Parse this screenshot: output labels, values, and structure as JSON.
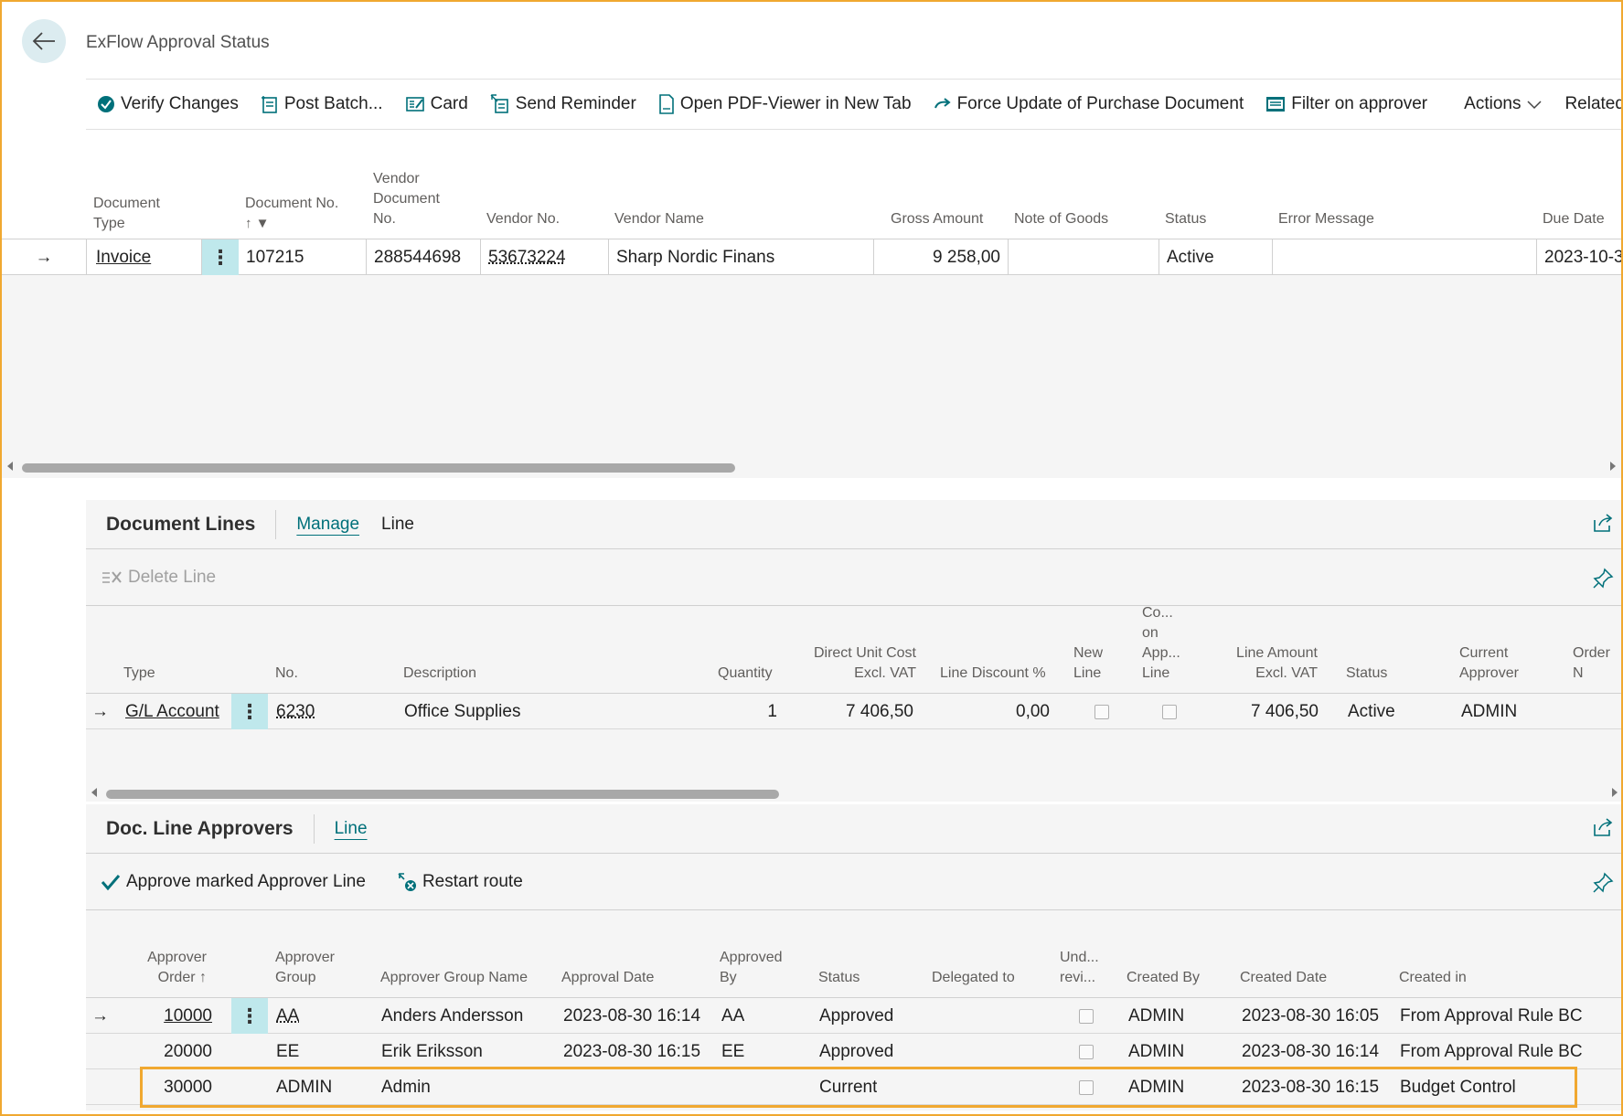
{
  "page": {
    "title": "ExFlow Approval Status"
  },
  "actions": [
    {
      "label": "Verify Changes",
      "icon": "verify-changes-icon"
    },
    {
      "label": "Post Batch...",
      "icon": "post-batch-icon"
    },
    {
      "label": "Card",
      "icon": "card-icon"
    },
    {
      "label": "Send Reminder",
      "icon": "send-reminder-icon"
    },
    {
      "label": "Open PDF-Viewer in New Tab",
      "icon": "pdf-icon"
    },
    {
      "label": "Force Update of Purchase Document",
      "icon": "arrow-right-icon"
    },
    {
      "label": "Filter on approver",
      "icon": "filter-approver-icon"
    },
    {
      "label": "Actions",
      "icon": "chevron-down-icon"
    },
    {
      "label": "Related",
      "icon": ""
    }
  ],
  "main_grid": {
    "columns": {
      "document_type": "Document Type",
      "document_no": "Document No.",
      "vendor_document_no": "Vendor Document No.",
      "vendor_no": "Vendor No.",
      "vendor_name": "Vendor Name",
      "gross_amount": "Gross Amount",
      "note_of_goods": "Note of Goods",
      "status": "Status",
      "error_message": "Error Message",
      "due_date": "Due Date"
    },
    "row": {
      "document_type": "Invoice",
      "document_no": "107215",
      "vendor_document_no": "288544698",
      "vendor_no": "53673224",
      "vendor_name": "Sharp Nordic Finans",
      "gross_amount": "9 258,00",
      "note_of_goods": "",
      "status": "Active",
      "error_message": "",
      "due_date": "2023-10-3"
    }
  },
  "document_lines": {
    "title": "Document Lines",
    "tabs": [
      "Manage",
      "Line"
    ],
    "toolbar": {
      "delete_line": "Delete Line"
    },
    "columns": {
      "type": "Type",
      "no": "No.",
      "description": "Description",
      "quantity": "Quantity",
      "direct_unit_cost_1": "Direct Unit Cost",
      "direct_unit_cost_2": "Excl. VAT",
      "line_discount": "Line Discount %",
      "new_line_1": "New",
      "new_line_2": "Line",
      "co_1": "Co...",
      "co_2": "on",
      "co_3": "App...",
      "co_4": "Line",
      "line_amount_1": "Line Amount",
      "line_amount_2": "Excl. VAT",
      "status": "Status",
      "current_approver_1": "Current",
      "current_approver_2": "Approver",
      "order_no": "Order N"
    },
    "row": {
      "type": "G/L Account",
      "no": "6230",
      "description": "Office Supplies",
      "quantity": "1",
      "direct_unit_cost": "7 406,50",
      "line_discount": "0,00",
      "new_line": false,
      "co_on_app_line": false,
      "line_amount": "7 406,50",
      "status": "Active",
      "current_approver": "ADMIN"
    }
  },
  "approvers": {
    "title": "Doc. Line Approvers",
    "tabs": [
      "Line"
    ],
    "toolbar": {
      "approve": "Approve marked Approver Line",
      "restart": "Restart route"
    },
    "columns": {
      "approver_order_1": "Approver",
      "approver_order_2": "Order",
      "approver_group_1": "Approver",
      "approver_group_2": "Group",
      "approver_group_name": "Approver Group Name",
      "approval_date": "Approval Date",
      "approved_by_1": "Approved",
      "approved_by_2": "By",
      "status": "Status",
      "delegated_to": "Delegated to",
      "und_1": "Und...",
      "und_2": "revi...",
      "created_by": "Created By",
      "created_date": "Created Date",
      "created_in": "Created in"
    },
    "rows": [
      {
        "order": "10000",
        "group": "AA",
        "group_name": "Anders Andersson",
        "approval_date": "2023-08-30 16:14",
        "approved_by": "AA",
        "status": "Approved",
        "delegated_to": "",
        "under_review": false,
        "created_by": "ADMIN",
        "created_date": "2023-08-30 16:05",
        "created_in": "From Approval Rule BC"
      },
      {
        "order": "20000",
        "group": "EE",
        "group_name": "Erik Eriksson",
        "approval_date": "2023-08-30 16:15",
        "approved_by": "EE",
        "status": "Approved",
        "delegated_to": "",
        "under_review": false,
        "created_by": "ADMIN",
        "created_date": "2023-08-30 16:14",
        "created_in": "From Approval Rule BC"
      },
      {
        "order": "30000",
        "group": "ADMIN",
        "group_name": "Admin",
        "approval_date": "",
        "approved_by": "",
        "status": "Current",
        "delegated_to": "",
        "under_review": false,
        "created_by": "ADMIN",
        "created_date": "2023-08-30 16:15",
        "created_in": "Budget Control"
      }
    ]
  },
  "colors": {
    "accent": "#00707a",
    "highlight": "#f0a830",
    "selected_cell": "#bfe8ec"
  }
}
